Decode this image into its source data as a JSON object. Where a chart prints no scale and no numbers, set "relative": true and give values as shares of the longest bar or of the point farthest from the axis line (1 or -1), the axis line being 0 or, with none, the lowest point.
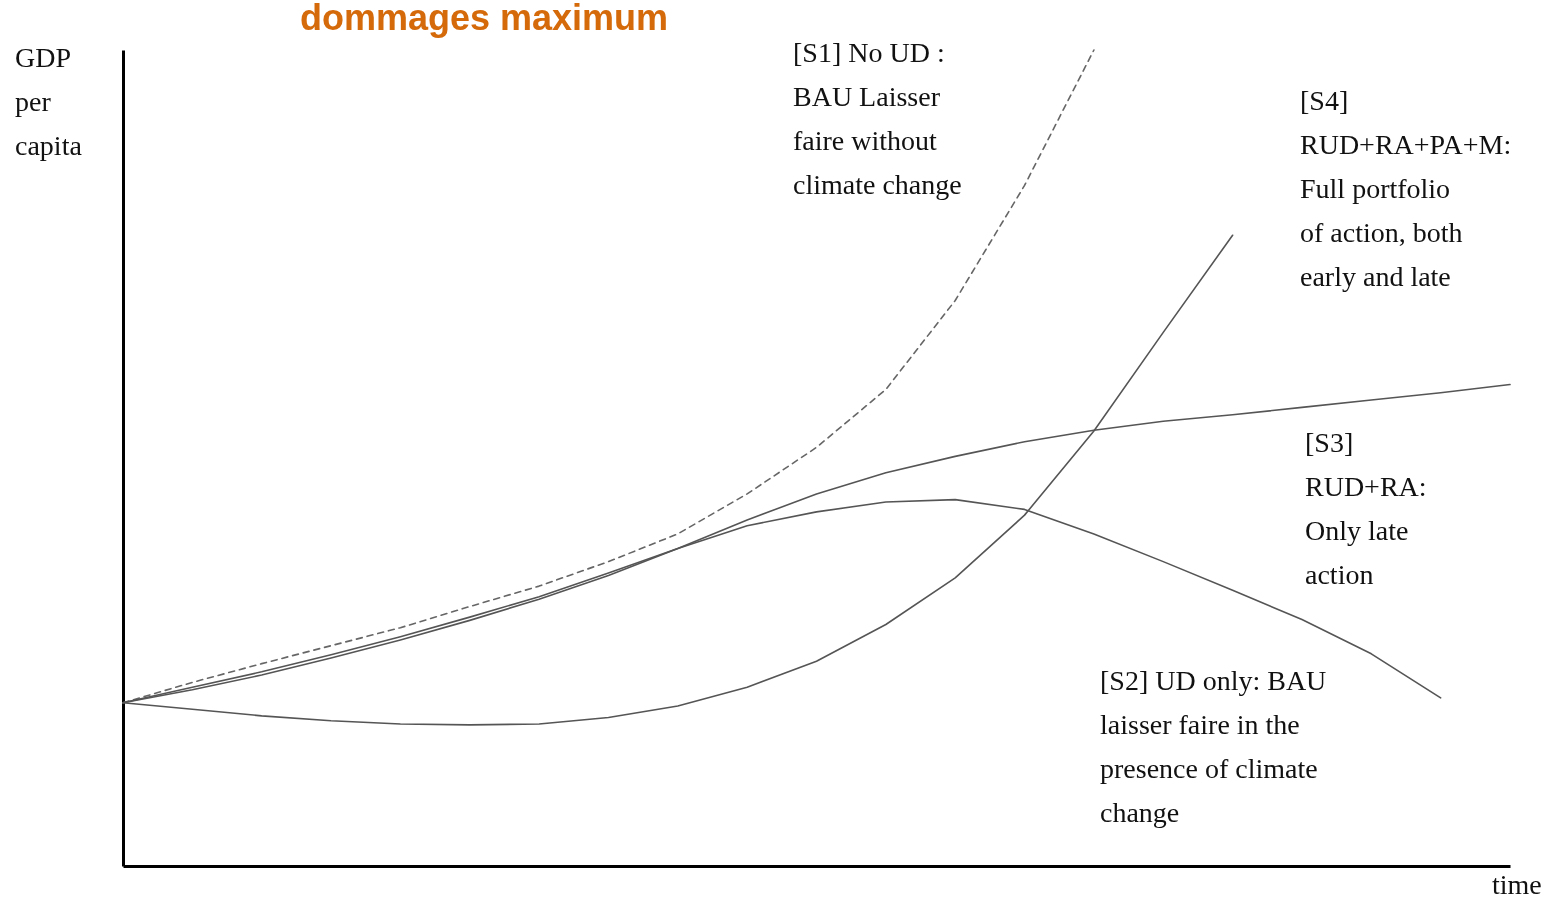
{
  "chart_data": {
    "type": "line",
    "title": "dommages maximum",
    "xlabel": "time",
    "ylabel": "GDP per capita",
    "relative": true,
    "categories": [
      null,
      null,
      null,
      null,
      null,
      null,
      null,
      null,
      null,
      null,
      null,
      null,
      null,
      null,
      null,
      null,
      null,
      null,
      null,
      null,
      null
    ],
    "series": [
      {
        "name": "[S1] No UD : BAU Laisser faire without climate change",
        "color": "#666666",
        "line_style": "dashed",
        "values": [
          0.2,
          0.225,
          0.248,
          0.27,
          0.292,
          0.318,
          0.343,
          0.373,
          0.407,
          0.456,
          0.513,
          0.584,
          0.693,
          0.834,
          1,
          null,
          null,
          null,
          null,
          null,
          null
        ]
      },
      {
        "name": "[S2] UD only: BAU laisser faire in the presence of climate change",
        "color": "#555555",
        "line_style": "solid",
        "values": [
          0.2,
          0.216,
          0.234,
          0.255,
          0.277,
          0.301,
          0.327,
          0.356,
          0.389,
          0.417,
          0.434,
          0.446,
          0.449,
          0.437,
          0.407,
          0.373,
          0.338,
          0.302,
          0.26,
          0.206,
          null
        ]
      },
      {
        "name": "[S3] RUD+RA: Only late action",
        "color": "#555555",
        "line_style": "solid",
        "values": [
          0.2,
          0.219,
          0.238,
          0.259,
          0.281,
          0.305,
          0.33,
          0.359,
          0.389,
          0.424,
          0.456,
          0.482,
          0.502,
          0.52,
          0.534,
          0.545,
          0.553,
          0.562,
          0.571,
          0.58,
          0.59
        ]
      },
      {
        "name": "[S4] RUD+RA+PA+M: Full portfolio of action, both early and late",
        "color": "#555555",
        "line_style": "solid",
        "values": [
          0.2,
          0.192,
          0.184,
          0.178,
          0.174,
          0.173,
          0.174,
          0.182,
          0.196,
          0.219,
          0.251,
          0.296,
          0.353,
          0.43,
          0.533,
          0.654,
          0.773,
          null,
          null,
          null,
          null
        ]
      }
    ]
  }
}
